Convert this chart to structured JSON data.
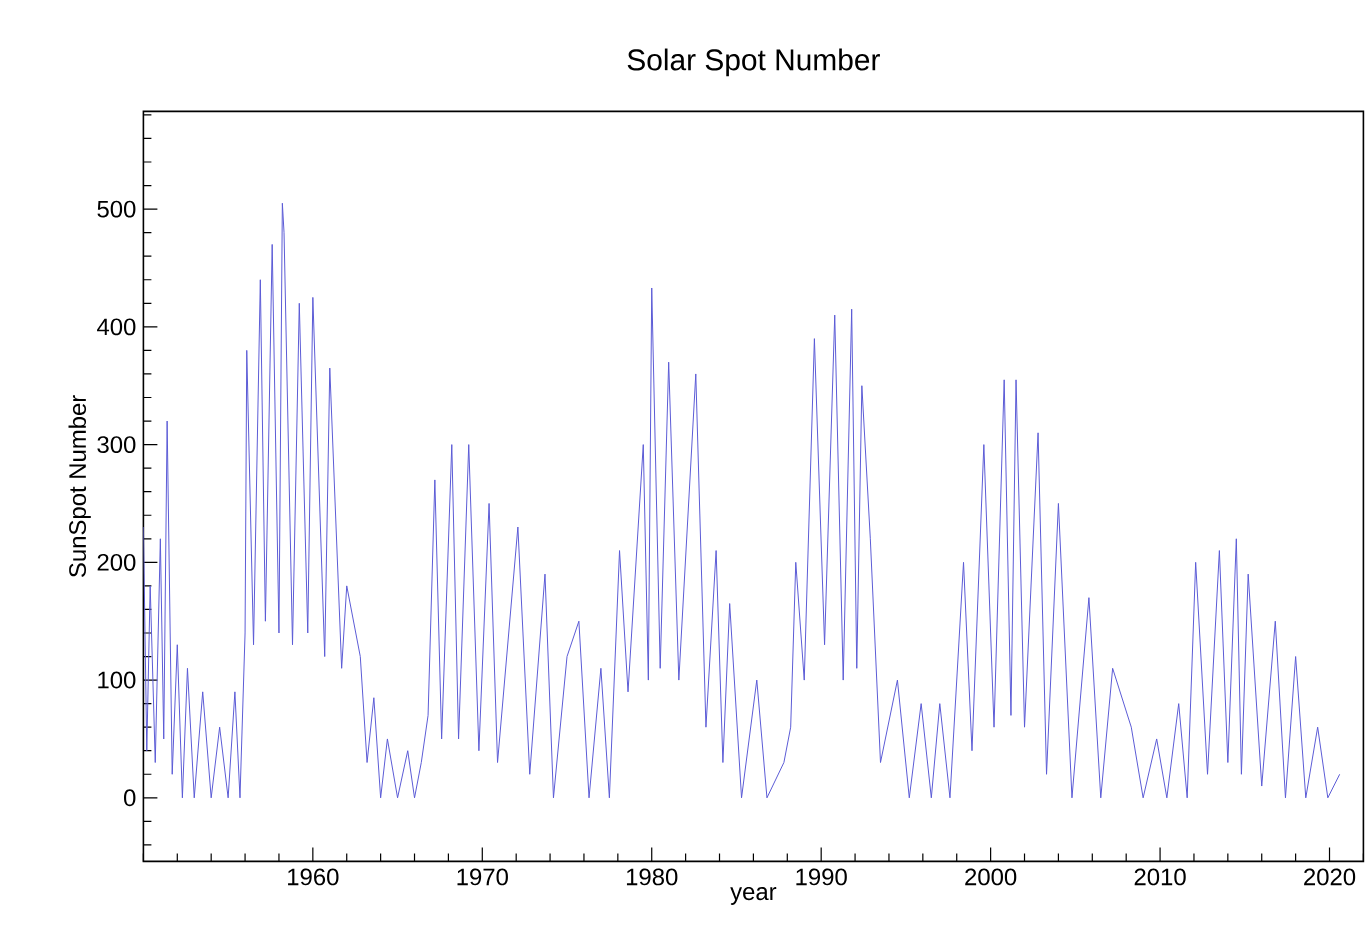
{
  "chart_data": {
    "type": "line",
    "title": "Solar Spot Number",
    "xlabel": "year",
    "ylabel": "SunSpot Number",
    "xlim": [
      1950,
      2022
    ],
    "ylim": [
      -54,
      583
    ],
    "xticks": [
      1960,
      1970,
      1980,
      1990,
      2000,
      2010,
      2020
    ],
    "yticks": [
      0,
      100,
      200,
      300,
      400,
      500
    ],
    "marker": "none",
    "line_style": "solid",
    "series": [
      {
        "color": "#5b5bd6",
        "x": [
          1950.0,
          1950.2,
          1950.4,
          1950.7,
          1951.0,
          1951.2,
          1951.4,
          1951.7,
          1952.0,
          1952.3,
          1952.6,
          1953.0,
          1953.5,
          1954.0,
          1954.5,
          1955.0,
          1955.4,
          1955.7,
          1956.0,
          1956.1,
          1956.5,
          1956.9,
          1957.2,
          1957.6,
          1958.0,
          1958.2,
          1958.3,
          1958.8,
          1959.2,
          1959.7,
          1960.0,
          1960.7,
          1961.0,
          1961.7,
          1962.0,
          1962.8,
          1963.2,
          1963.6,
          1964.0,
          1964.4,
          1965.0,
          1965.6,
          1966.0,
          1966.4,
          1966.8,
          1967.2,
          1967.6,
          1968.2,
          1968.6,
          1969.2,
          1969.8,
          1970.4,
          1970.9,
          1972.1,
          1972.8,
          1973.7,
          1974.2,
          1975.0,
          1975.7,
          1976.3,
          1977.0,
          1977.5,
          1978.1,
          1978.6,
          1979.5,
          1979.8,
          1980.0,
          1980.5,
          1981.0,
          1981.6,
          1982.6,
          1983.2,
          1983.8,
          1984.2,
          1984.6,
          1985.3,
          1986.2,
          1986.8,
          1987.8,
          1988.2,
          1988.5,
          1989.0,
          1989.6,
          1990.2,
          1990.8,
          1991.3,
          1991.8,
          1992.1,
          1992.4,
          1992.9,
          1993.5,
          1994.5,
          1995.2,
          1995.9,
          1996.5,
          1997.0,
          1997.6,
          1998.4,
          1998.9,
          1999.6,
          2000.2,
          2000.8,
          2001.2,
          2001.5,
          2002.0,
          2002.8,
          2003.3,
          2004.0,
          2004.8,
          2005.8,
          2006.5,
          2007.2,
          2008.3,
          2009.0,
          2009.8,
          2010.4,
          2011.1,
          2011.6,
          2012.1,
          2012.8,
          2013.5,
          2014.0,
          2014.5,
          2014.8,
          2015.2,
          2016.0,
          2016.8,
          2017.4,
          2018.0,
          2018.6,
          2019.3,
          2019.9,
          2020.6
        ],
        "values": [
          230,
          40,
          180,
          30,
          220,
          50,
          320,
          20,
          130,
          0,
          110,
          0,
          90,
          0,
          60,
          0,
          90,
          0,
          140,
          380,
          130,
          440,
          150,
          470,
          140,
          505,
          480,
          130,
          420,
          140,
          425,
          120,
          365,
          110,
          180,
          120,
          30,
          85,
          0,
          50,
          0,
          40,
          0,
          30,
          70,
          270,
          50,
          300,
          50,
          300,
          40,
          250,
          30,
          230,
          20,
          190,
          0,
          120,
          150,
          0,
          110,
          0,
          210,
          90,
          300,
          100,
          433,
          110,
          370,
          100,
          360,
          60,
          210,
          30,
          165,
          0,
          100,
          0,
          30,
          60,
          200,
          100,
          390,
          130,
          410,
          100,
          415,
          110,
          350,
          220,
          30,
          100,
          0,
          80,
          0,
          80,
          0,
          200,
          40,
          300,
          60,
          355,
          70,
          355,
          60,
          310,
          20,
          250,
          0,
          170,
          0,
          110,
          60,
          0,
          50,
          0,
          80,
          0,
          200,
          20,
          210,
          30,
          220,
          20,
          190,
          10,
          150,
          0,
          120,
          0,
          60,
          0,
          20
        ]
      }
    ]
  }
}
